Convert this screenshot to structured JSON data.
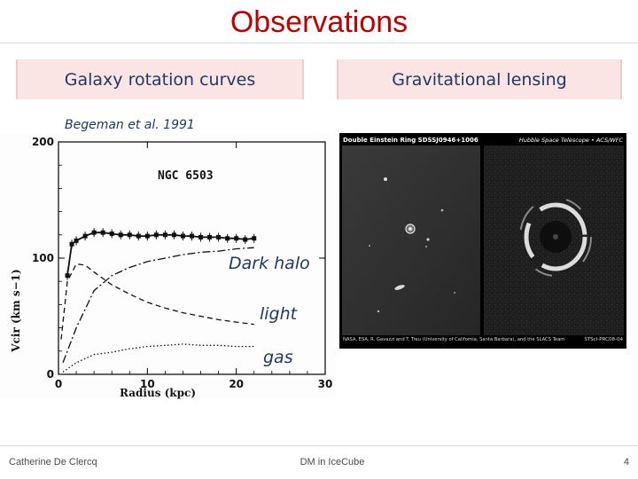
{
  "slide": {
    "title": "Observations",
    "left_box": "Galaxy rotation curves",
    "right_box": "Gravitational lensing",
    "caption": "Begeman et al. 1991"
  },
  "annotations": {
    "dark_halo": "Dark halo",
    "light": "light",
    "gas": "gas"
  },
  "plot": {
    "galaxy_label": "NGC 6503",
    "xlabel": "Radius (kpc)",
    "ylabel": "Vcir (km s−1)",
    "x_ticks": [
      "0",
      "10",
      "20",
      "30"
    ],
    "y_ticks": [
      "0",
      "100",
      "200"
    ]
  },
  "lensing_image": {
    "title_left": "Double Einstein Ring SDSSJ0946+1006",
    "title_right": "Hubble Space Telescope • ACS/WFC",
    "credit_left": "NASA, ESA, R. Gavazzi and T. Treu (University of California, Santa Barbara), and the SLACS Team",
    "credit_right": "STScI-PRC08-04"
  },
  "footer": {
    "author": "Catherine De Clercq",
    "center": "DM in IceCube",
    "page": "4"
  },
  "chart_data": {
    "type": "line",
    "title": "NGC 6503",
    "xlabel": "Radius (kpc)",
    "ylabel": "Vcir (km s−1)",
    "xlim": [
      0,
      30
    ],
    "ylim": [
      0,
      200
    ],
    "series": [
      {
        "name": "",
        "style": "observed",
        "x": [
          1,
          1.5,
          2,
          3,
          4,
          5,
          6,
          7,
          8,
          9,
          10,
          11,
          12,
          13,
          14,
          15,
          16,
          17,
          18,
          19,
          20,
          21,
          22
        ],
        "y": [
          85,
          112,
          115,
          119,
          122,
          122,
          121,
          120,
          120,
          119,
          119,
          120,
          120,
          120,
          119,
          119,
          118,
          118,
          118,
          117,
          117,
          116,
          117
        ]
      },
      {
        "name": "Dark halo",
        "style": "dash-dot",
        "x": [
          0.5,
          2,
          4,
          6,
          8,
          10,
          12,
          14,
          16,
          18,
          20,
          22
        ],
        "y": [
          10,
          40,
          72,
          85,
          92,
          97,
          100,
          103,
          105,
          106,
          108,
          109
        ]
      },
      {
        "name": "light",
        "style": "dashed",
        "x": [
          0.3,
          1,
          2,
          3,
          4,
          6,
          8,
          10,
          12,
          14,
          16,
          18,
          20,
          22
        ],
        "y": [
          30,
          80,
          95,
          94,
          88,
          77,
          69,
          62,
          57,
          53,
          50,
          47,
          45,
          43
        ]
      },
      {
        "name": "gas",
        "style": "dotted",
        "x": [
          0.5,
          2,
          4,
          6,
          8,
          10,
          12,
          14,
          16,
          18,
          20,
          22
        ],
        "y": [
          2,
          10,
          17,
          19,
          22,
          24,
          25,
          26,
          25,
          25,
          24,
          24
        ]
      }
    ]
  }
}
